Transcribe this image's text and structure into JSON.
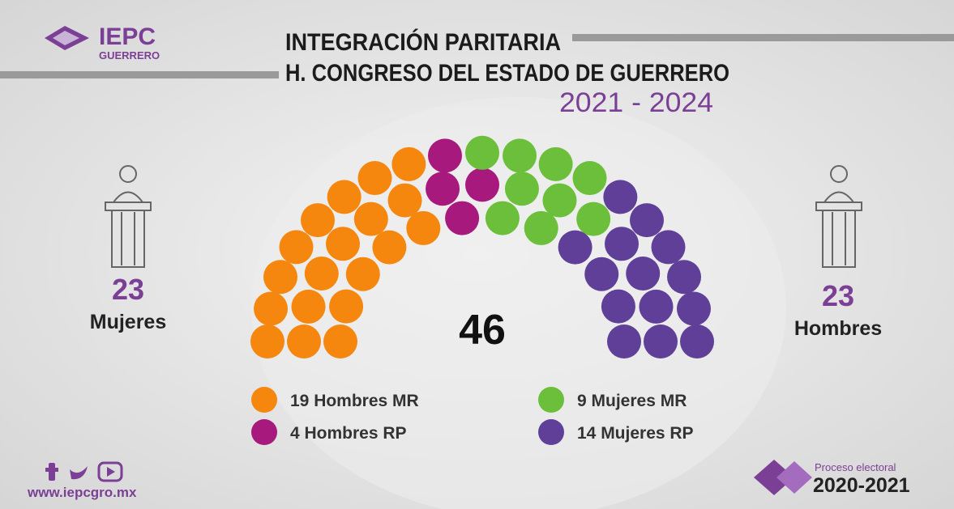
{
  "header": {
    "logo": "IEPC",
    "logo_sub": "GUERRERO",
    "title_line1": "INTEGRACIÓN PARITARIA",
    "title_line2": "H. CONGRESO DEL ESTADO DE GUERRERO",
    "period": "2021 - 2024"
  },
  "chart_data": {
    "type": "parliament",
    "total": 46,
    "series": [
      {
        "name": "19 Hombres MR",
        "color": "#f5870f",
        "values": [
          19
        ]
      },
      {
        "name": "4 Hombres RP",
        "color": "#a8197e",
        "values": [
          4
        ]
      },
      {
        "name": "9 Mujeres MR",
        "color": "#6cbf3a",
        "values": [
          9
        ]
      },
      {
        "name": "14 Mujeres RP",
        "color": "#5f3f98",
        "values": [
          14
        ]
      }
    ]
  },
  "left": {
    "value": 23,
    "label": "Mujeres"
  },
  "right": {
    "value": 23,
    "label": "Hombres"
  },
  "footer": {
    "website": "www.iepcgro.mx",
    "process_label": "Proceso electoral",
    "process_years": "2020-2021"
  }
}
